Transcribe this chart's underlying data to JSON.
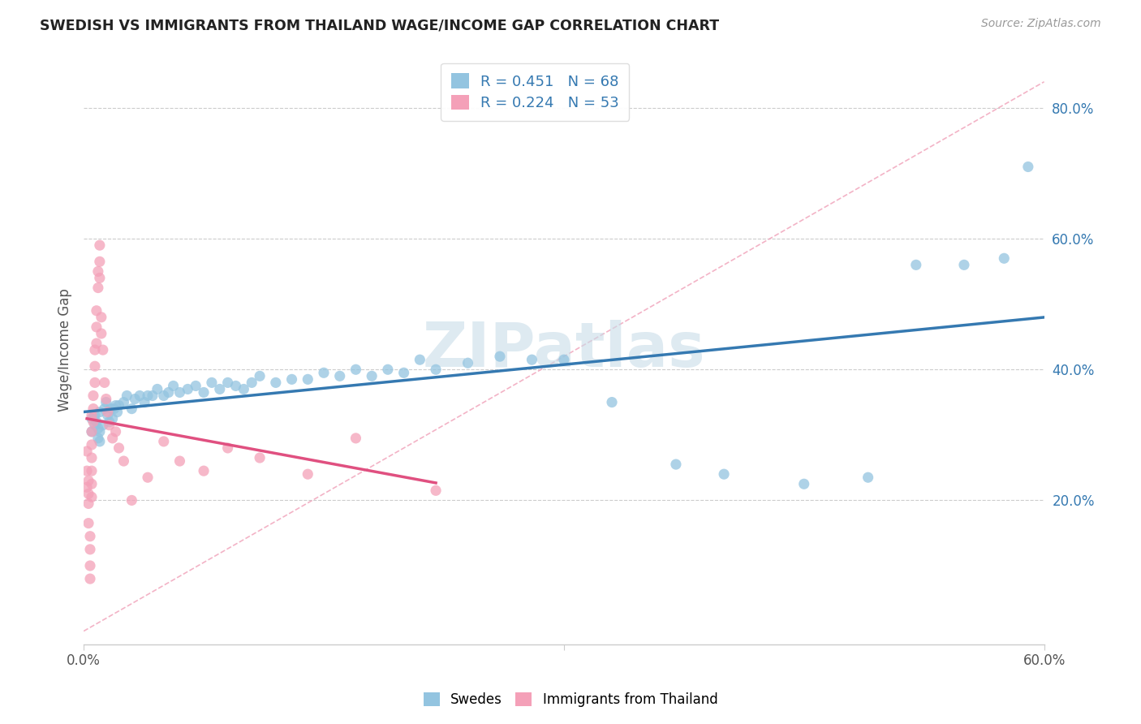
{
  "title": "SWEDISH VS IMMIGRANTS FROM THAILAND WAGE/INCOME GAP CORRELATION CHART",
  "source": "Source: ZipAtlas.com",
  "ylabel": "Wage/Income Gap",
  "xlim": [
    0.0,
    0.6
  ],
  "ylim": [
    -0.02,
    0.88
  ],
  "yticks": [
    0.2,
    0.4,
    0.6,
    0.8
  ],
  "ytick_labels": [
    "20.0%",
    "40.0%",
    "60.0%",
    "80.0%"
  ],
  "color_blue": "#93c4e0",
  "color_pink": "#f4a0b8",
  "color_blue_dark": "#3579b1",
  "color_pink_dark": "#e05080",
  "background": "#ffffff",
  "watermark": "ZIPatlas",
  "swedes_x": [
    0.005,
    0.005,
    0.007,
    0.007,
    0.008,
    0.009,
    0.009,
    0.01,
    0.01,
    0.01,
    0.012,
    0.013,
    0.014,
    0.015,
    0.016,
    0.017,
    0.018,
    0.019,
    0.02,
    0.021,
    0.022,
    0.025,
    0.027,
    0.03,
    0.032,
    0.035,
    0.038,
    0.04,
    0.043,
    0.046,
    0.05,
    0.053,
    0.056,
    0.06,
    0.065,
    0.07,
    0.075,
    0.08,
    0.085,
    0.09,
    0.095,
    0.1,
    0.105,
    0.11,
    0.12,
    0.13,
    0.14,
    0.15,
    0.16,
    0.17,
    0.18,
    0.19,
    0.2,
    0.21,
    0.22,
    0.24,
    0.26,
    0.28,
    0.3,
    0.33,
    0.37,
    0.4,
    0.45,
    0.49,
    0.52,
    0.55,
    0.575,
    0.59
  ],
  "swedes_y": [
    0.305,
    0.325,
    0.315,
    0.33,
    0.32,
    0.31,
    0.295,
    0.29,
    0.305,
    0.335,
    0.315,
    0.34,
    0.35,
    0.33,
    0.32,
    0.34,
    0.325,
    0.34,
    0.345,
    0.335,
    0.345,
    0.35,
    0.36,
    0.34,
    0.355,
    0.36,
    0.35,
    0.36,
    0.36,
    0.37,
    0.36,
    0.365,
    0.375,
    0.365,
    0.37,
    0.375,
    0.365,
    0.38,
    0.37,
    0.38,
    0.375,
    0.37,
    0.38,
    0.39,
    0.38,
    0.385,
    0.385,
    0.395,
    0.39,
    0.4,
    0.39,
    0.4,
    0.395,
    0.415,
    0.4,
    0.41,
    0.42,
    0.415,
    0.415,
    0.35,
    0.255,
    0.24,
    0.225,
    0.235,
    0.56,
    0.56,
    0.57,
    0.71
  ],
  "thai_x": [
    0.002,
    0.002,
    0.002,
    0.003,
    0.003,
    0.003,
    0.003,
    0.004,
    0.004,
    0.004,
    0.004,
    0.005,
    0.005,
    0.005,
    0.005,
    0.005,
    0.005,
    0.005,
    0.006,
    0.006,
    0.006,
    0.007,
    0.007,
    0.007,
    0.008,
    0.008,
    0.008,
    0.009,
    0.009,
    0.01,
    0.01,
    0.01,
    0.011,
    0.011,
    0.012,
    0.013,
    0.014,
    0.015,
    0.016,
    0.018,
    0.02,
    0.022,
    0.025,
    0.03,
    0.04,
    0.05,
    0.06,
    0.075,
    0.09,
    0.11,
    0.14,
    0.17,
    0.22
  ],
  "thai_y": [
    0.245,
    0.275,
    0.22,
    0.23,
    0.21,
    0.195,
    0.165,
    0.145,
    0.125,
    0.1,
    0.08,
    0.33,
    0.305,
    0.285,
    0.265,
    0.245,
    0.225,
    0.205,
    0.36,
    0.34,
    0.32,
    0.43,
    0.405,
    0.38,
    0.49,
    0.465,
    0.44,
    0.55,
    0.525,
    0.59,
    0.565,
    0.54,
    0.48,
    0.455,
    0.43,
    0.38,
    0.355,
    0.335,
    0.315,
    0.295,
    0.305,
    0.28,
    0.26,
    0.2,
    0.235,
    0.29,
    0.26,
    0.245,
    0.28,
    0.265,
    0.24,
    0.295,
    0.215
  ]
}
